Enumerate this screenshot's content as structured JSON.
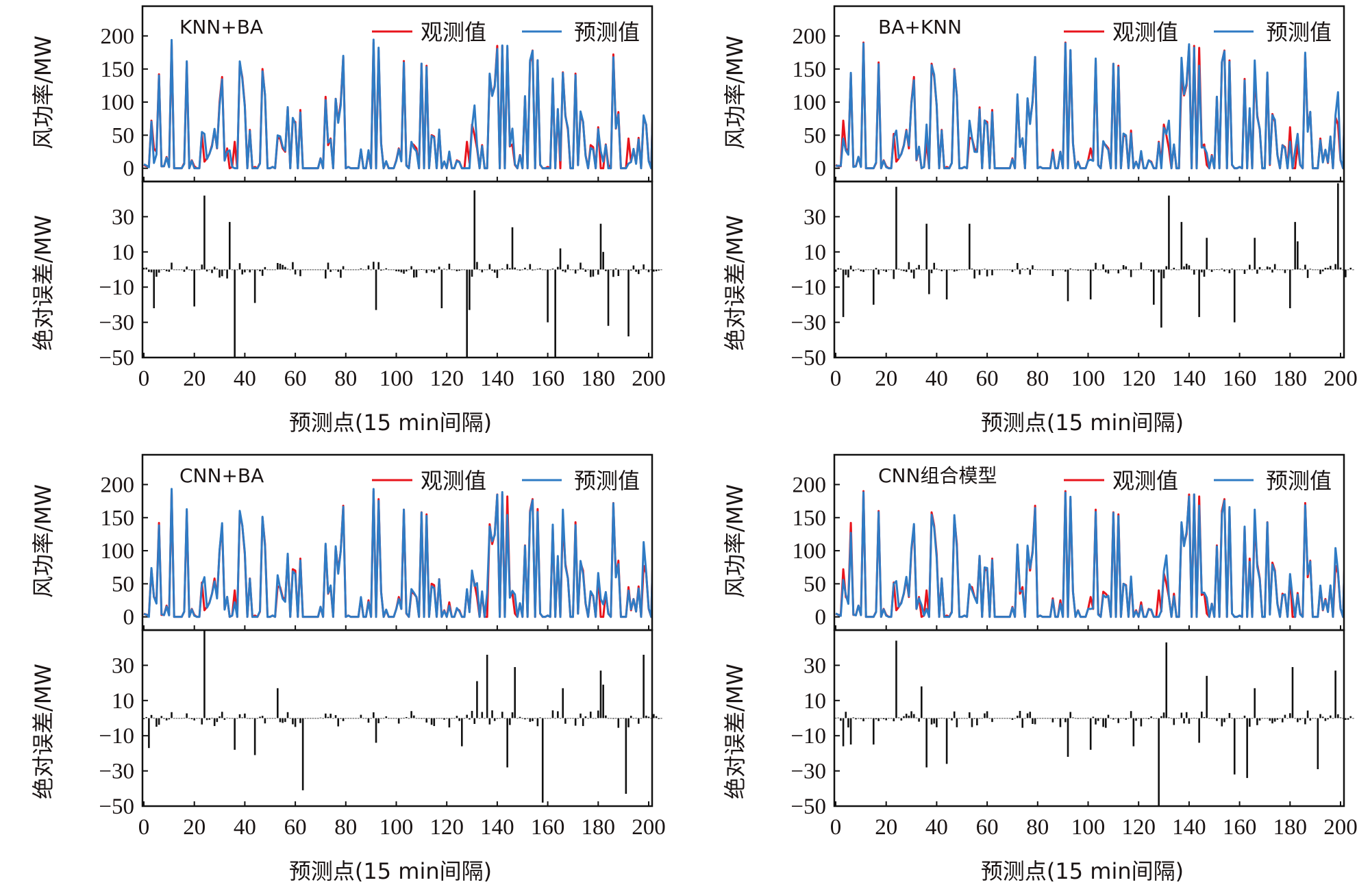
{
  "figure": {
    "common": {
      "power_ylabel": "风功率/MW",
      "error_ylabel": "绝对误差/MW",
      "xlabel": "预测点(15 min间隔)",
      "legend_observed": "观测值",
      "legend_predicted": "预测值",
      "power_ticks": [
        "0",
        "50",
        "100",
        "150",
        "200"
      ],
      "error_ticks": [
        "30",
        "10",
        "-10",
        "-30",
        "-50"
      ],
      "x_ticks": [
        "0",
        "20",
        "40",
        "60",
        "80",
        "100",
        "120",
        "140",
        "160",
        "180",
        "200"
      ],
      "colors": {
        "observed": "#e8141c",
        "predicted": "#2f7bc4",
        "error_bar": "#111111",
        "axis": "#111111"
      }
    }
  },
  "chart_data": [
    {
      "type": "line",
      "title": "KNN+BA",
      "xlabel": "预测点(15 min间隔)",
      "ylabel_top": "风功率/MW",
      "ylabel_bottom": "绝对误差/MW",
      "xlim": [
        0,
        201
      ],
      "ylim_top": [
        -20,
        245
      ],
      "ylim_bottom": [
        -50,
        50
      ],
      "legend": [
        "观测值",
        "预测值"
      ],
      "legend_placement": "top-right",
      "error_definition": "predicted - observed",
      "errors_key_points": [
        [
          4,
          -22
        ],
        [
          20,
          -21
        ],
        [
          24,
          42
        ],
        [
          34,
          27
        ],
        [
          36,
          -50
        ],
        [
          44,
          -19
        ],
        [
          92,
          -23
        ],
        [
          118,
          -22
        ],
        [
          128,
          -50
        ],
        [
          129,
          -23
        ],
        [
          131,
          45
        ],
        [
          146,
          24
        ],
        [
          160,
          -30
        ],
        [
          163,
          -50
        ],
        [
          165,
          12
        ],
        [
          181,
          26
        ],
        [
          182,
          10
        ],
        [
          184,
          -32
        ],
        [
          192,
          -38
        ]
      ]
    },
    {
      "type": "line",
      "title": "BA+KNN",
      "xlabel": "预测点(15 min间隔)",
      "ylabel_top": "风功率/MW",
      "ylabel_bottom": "绝对误差/MW",
      "xlim": [
        0,
        201
      ],
      "ylim_top": [
        -20,
        245
      ],
      "ylim_bottom": [
        -50,
        50
      ],
      "legend": [
        "观测值",
        "预测值"
      ],
      "legend_placement": "top-right",
      "error_definition": "predicted - observed",
      "errors_key_points": [
        [
          3,
          -27
        ],
        [
          15,
          -20
        ],
        [
          24,
          47
        ],
        [
          36,
          26
        ],
        [
          37,
          -14
        ],
        [
          44,
          -17
        ],
        [
          53,
          26
        ],
        [
          92,
          -18
        ],
        [
          101,
          -17
        ],
        [
          126,
          -20
        ],
        [
          129,
          -33
        ],
        [
          132,
          42
        ],
        [
          137,
          27
        ],
        [
          144,
          -27
        ],
        [
          147,
          18
        ],
        [
          158,
          -30
        ],
        [
          166,
          18
        ],
        [
          180,
          -22
        ],
        [
          182,
          27
        ],
        [
          183,
          16
        ],
        [
          199,
          49
        ]
      ]
    },
    {
      "type": "line",
      "title": "CNN+BA",
      "xlabel": "预测点(15 min间隔)",
      "ylabel_top": "风功率/MW",
      "ylabel_bottom": "绝对误差/MW",
      "xlim": [
        0,
        201
      ],
      "ylim_top": [
        -20,
        245
      ],
      "ylim_bottom": [
        -50,
        50
      ],
      "legend": [
        "观测值",
        "预测值"
      ],
      "legend_placement": "top-right",
      "error_definition": "predicted - observed",
      "errors_key_points": [
        [
          2,
          -17
        ],
        [
          24,
          50
        ],
        [
          36,
          -18
        ],
        [
          44,
          -21
        ],
        [
          53,
          17
        ],
        [
          63,
          -41
        ],
        [
          92,
          -14
        ],
        [
          126,
          -16
        ],
        [
          132,
          21
        ],
        [
          136,
          36
        ],
        [
          144,
          -28
        ],
        [
          147,
          29
        ],
        [
          158,
          -48
        ],
        [
          166,
          17
        ],
        [
          181,
          27
        ],
        [
          182,
          19
        ],
        [
          191,
          -43
        ],
        [
          198,
          36
        ]
      ]
    },
    {
      "type": "line",
      "title": "CNN组合模型",
      "xlabel": "预测点(15 min间隔)",
      "ylabel_top": "风功率/MW",
      "ylabel_bottom": "绝对误差/MW",
      "xlim": [
        0,
        201
      ],
      "ylim_top": [
        -20,
        245
      ],
      "ylim_bottom": [
        -50,
        50
      ],
      "legend": [
        "观测值",
        "预测值"
      ],
      "legend_placement": "top-right",
      "error_definition": "predicted - observed",
      "errors_key_points": [
        [
          3,
          -16
        ],
        [
          6,
          -15
        ],
        [
          15,
          -15
        ],
        [
          24,
          44
        ],
        [
          34,
          18
        ],
        [
          36,
          -28
        ],
        [
          44,
          -26
        ],
        [
          92,
          -22
        ],
        [
          101,
          -18
        ],
        [
          118,
          -16
        ],
        [
          128,
          -50
        ],
        [
          131,
          43
        ],
        [
          144,
          -14
        ],
        [
          147,
          24
        ],
        [
          158,
          -32
        ],
        [
          163,
          -34
        ],
        [
          166,
          17
        ],
        [
          181,
          29
        ],
        [
          191,
          -29
        ],
        [
          198,
          27
        ]
      ]
    }
  ],
  "observed": [
    5,
    3,
    3,
    72,
    30,
    25,
    142,
    3,
    3,
    17,
    3,
    190,
    0,
    0,
    0,
    0,
    8,
    160,
    0,
    12,
    3,
    0,
    0,
    52,
    10,
    15,
    22,
    35,
    58,
    30,
    100,
    138,
    12,
    30,
    0,
    2,
    40,
    0,
    158,
    138,
    95,
    0,
    58,
    0,
    2,
    0,
    8,
    150,
    110,
    0,
    0,
    2,
    0,
    46,
    45,
    30,
    25,
    92,
    0,
    72,
    70,
    0,
    88,
    0,
    0,
    0,
    0,
    0,
    0,
    0,
    15,
    0,
    108,
    35,
    45,
    0,
    105,
    70,
    100,
    168,
    0,
    2,
    0,
    0,
    0,
    0,
    28,
    0,
    0,
    25,
    0,
    190,
    0,
    178,
    38,
    0,
    10,
    0,
    0,
    0,
    12,
    30,
    12,
    162,
    5,
    0,
    38,
    35,
    30,
    0,
    158,
    0,
    155,
    0,
    50,
    48,
    0,
    57,
    0,
    10,
    0,
    22,
    0,
    0,
    12,
    10,
    0,
    0,
    40,
    8,
    66,
    50,
    30,
    0,
    35,
    0,
    0,
    140,
    110,
    125,
    185,
    0,
    185,
    0,
    182,
    33,
    36,
    5,
    0,
    20,
    0,
    108,
    0,
    160,
    178,
    0,
    163,
    5,
    0,
    0,
    2,
    0,
    135,
    0,
    88,
    0,
    145,
    80,
    58,
    0,
    0,
    143,
    5,
    82,
    70,
    20,
    0,
    35,
    32,
    0,
    62,
    0,
    0,
    36,
    5,
    0,
    172,
    60,
    85,
    0,
    0,
    0,
    45,
    10,
    27,
    8,
    46,
    0,
    77,
    66,
    12,
    0,
    145,
    5,
    3,
    0
  ]
}
